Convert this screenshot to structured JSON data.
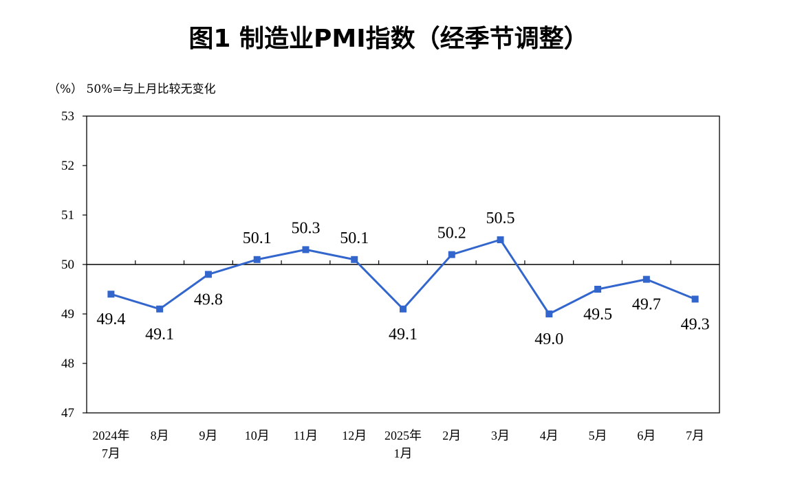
{
  "chart_data": {
    "type": "line",
    "title": "图1  制造业PMI指数（经季节调整）",
    "unit_note": "（%）  50%=与上月比较无变化",
    "categories": [
      [
        "2024年",
        "7月"
      ],
      [
        "8月"
      ],
      [
        "9月"
      ],
      [
        "10月"
      ],
      [
        "11月"
      ],
      [
        "12月"
      ],
      [
        "2025年",
        "1月"
      ],
      [
        "2月"
      ],
      [
        "3月"
      ],
      [
        "4月"
      ],
      [
        "5月"
      ],
      [
        "6月"
      ],
      [
        "7月"
      ]
    ],
    "values": [
      49.4,
      49.1,
      49.8,
      50.1,
      50.3,
      50.1,
      49.1,
      50.2,
      50.5,
      49.0,
      49.5,
      49.7,
      49.3
    ],
    "data_labels": [
      "49.4",
      "49.1",
      "49.8",
      "50.1",
      "50.3",
      "50.1",
      "49.1",
      "50.2",
      "50.5",
      "49.0",
      "49.5",
      "49.7",
      "49.3"
    ],
    "ylim": [
      47,
      53
    ],
    "yticks": [
      47,
      48,
      49,
      50,
      51,
      52,
      53
    ],
    "reference_line": 50,
    "grid": false,
    "line_color": "#3366CC",
    "marker_color": "#3366CC",
    "reference_line_color": "#000000"
  }
}
